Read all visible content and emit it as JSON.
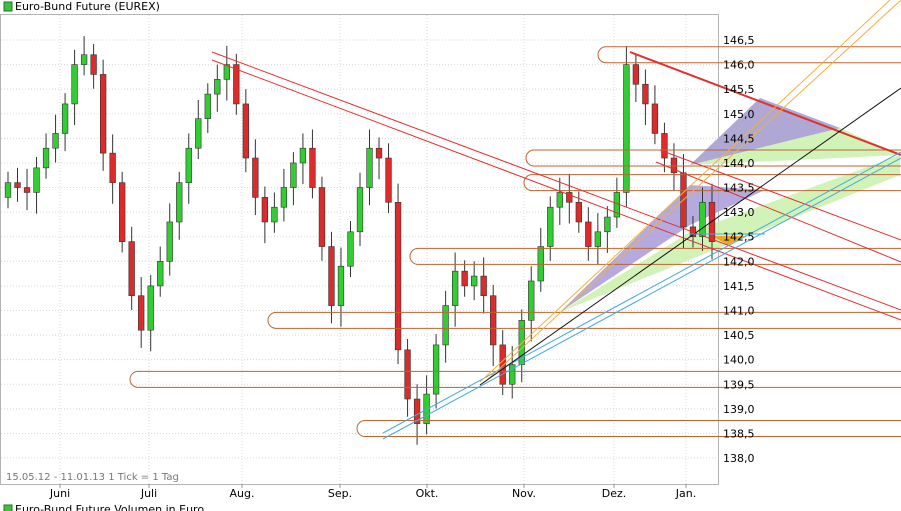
{
  "title": "Euro-Bund Future (EUREX)",
  "footer_info": "15.05.12 - 11.01.13   1 Tick = 1 Tag",
  "volume_title": "Euro-Bund Future Volumen in Euro",
  "colors": {
    "legend_green": "#3fbf3f",
    "candle_up": "#33cc33",
    "candle_down": "#dd2a2a",
    "resistance": "#e03030",
    "support_lines": "#bb6633",
    "channel_blue": "#44aadd",
    "trend_orange": "#f0b040",
    "shade_purple": "#a99ad8",
    "shade_green": "#cdf2b0",
    "highlight_orange": "#f0a820"
  },
  "chart_data": {
    "type": "candlestick",
    "title": "Euro-Bund Future (EUREX)",
    "x_ticks": [
      "Juni",
      "Juli",
      "Aug.",
      "Sep.",
      "Okt.",
      "Nov.",
      "Dez.",
      "Jan."
    ],
    "y_ticks": [
      "146,5",
      "146,0",
      "145,5",
      "145,0",
      "144,5",
      "144,0",
      "143,5",
      "143,0",
      "142,5",
      "142,0",
      "141,5",
      "141,0",
      "140,5",
      "140,0",
      "139,5",
      "139,0",
      "138,5",
      "138,0"
    ],
    "ylim": [
      137.7,
      146.8
    ],
    "grid": true,
    "horizontal_levels": [
      146.2,
      144.1,
      143.6,
      142.1,
      140.8,
      139.6,
      138.6
    ],
    "candles_close_approx": [
      143.6,
      143.5,
      143.4,
      143.9,
      144.3,
      144.6,
      145.2,
      146.0,
      146.2,
      145.8,
      144.2,
      143.6,
      142.4,
      141.3,
      140.6,
      141.5,
      142.0,
      142.8,
      143.6,
      144.3,
      144.9,
      145.4,
      145.7,
      146.0,
      145.2,
      144.1,
      143.3,
      142.8,
      143.1,
      143.5,
      144.0,
      144.3,
      143.5,
      142.3,
      141.1,
      141.9,
      142.6,
      143.5,
      144.3,
      144.1,
      143.2,
      140.2,
      139.2,
      138.7,
      139.3,
      140.3,
      141.1,
      141.8,
      141.5,
      141.7,
      141.3,
      140.3,
      139.5,
      139.9,
      140.8,
      141.6,
      142.3,
      143.1,
      143.4,
      143.2,
      142.8,
      142.3,
      142.6,
      142.9,
      143.4,
      146.0,
      145.6,
      145.2,
      144.6,
      144.1,
      143.8,
      142.7,
      142.5,
      143.2,
      142.4
    ]
  }
}
